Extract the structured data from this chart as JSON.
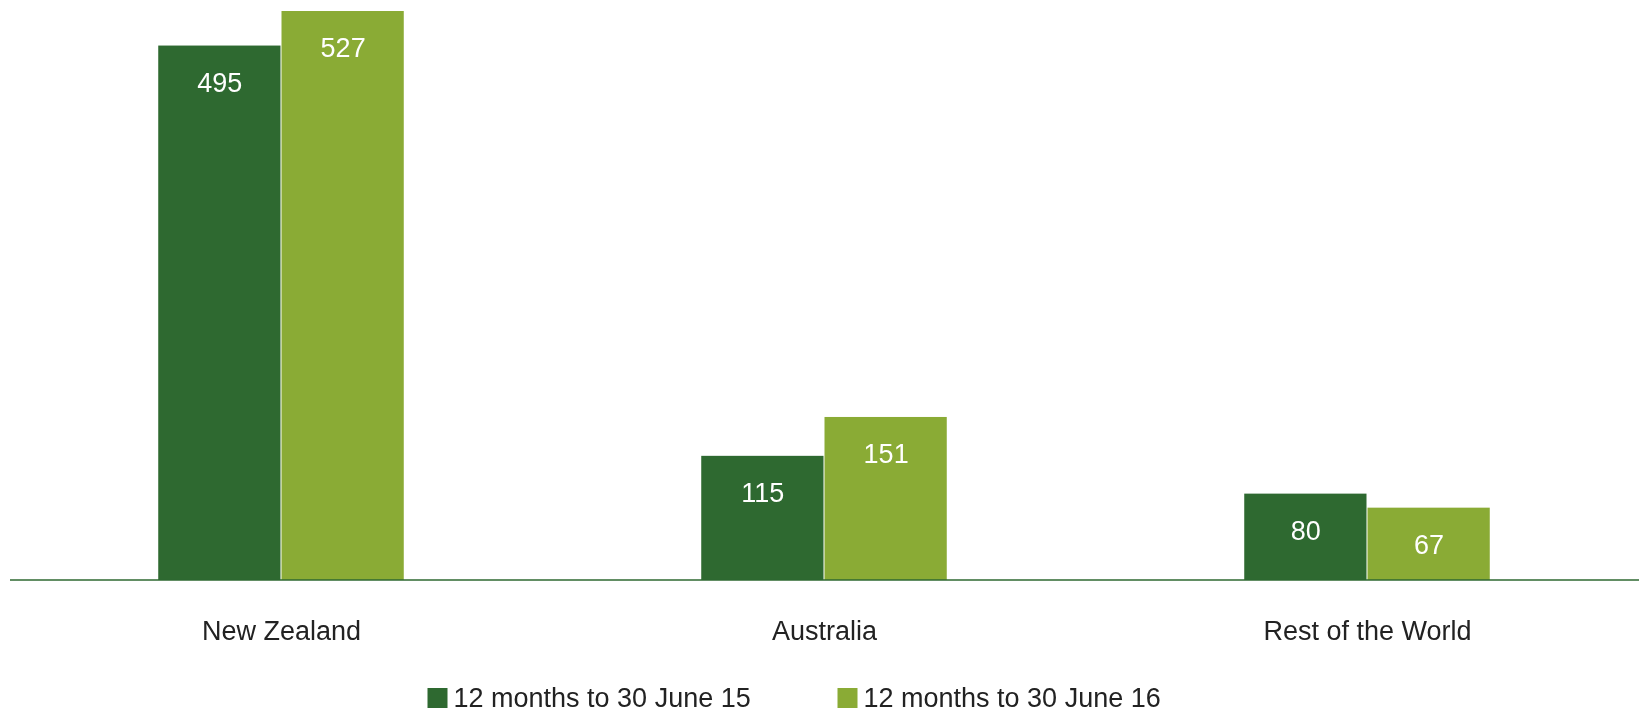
{
  "chart_data": {
    "type": "bar",
    "categories": [
      "New Zealand",
      "Australia",
      "Rest of the World"
    ],
    "series": [
      {
        "name": "12 months to 30 June 15",
        "color": "#2e6930",
        "values": [
          495,
          115,
          80
        ]
      },
      {
        "name": "12 months to 30 June 16",
        "color": "#8aab35",
        "values": [
          527,
          151,
          67
        ]
      }
    ],
    "data_labels": true,
    "legend": "bottom"
  }
}
